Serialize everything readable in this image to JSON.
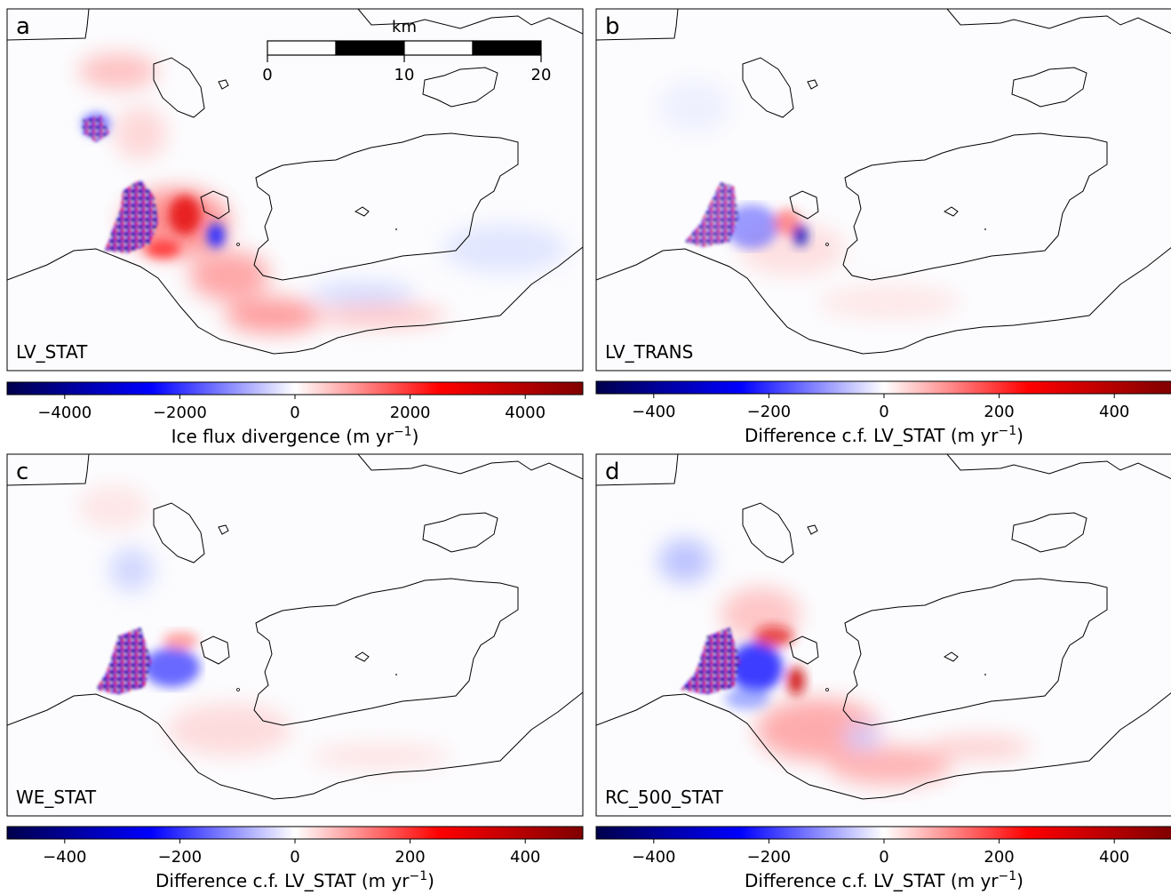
{
  "chart_data": [
    {
      "type": "heatmap",
      "panel_letter": "a",
      "label": "LV_STAT",
      "colorbar": {
        "label": "Ice flux divergence (m yr",
        "label_sup": "−1",
        "label_close": ")",
        "range": [
          -5000,
          5000
        ],
        "ticks": [
          -4000,
          -2000,
          0,
          2000,
          4000
        ],
        "tick_labels": [
          "−4000",
          "−2000",
          "0",
          "2000",
          "4000"
        ]
      },
      "scale_bar": {
        "unit": "km",
        "ticks": [
          "0",
          "10",
          "20"
        ]
      }
    },
    {
      "type": "heatmap",
      "panel_letter": "b",
      "label": "LV_TRANS",
      "colorbar": {
        "label": "Difference c.f. LV_STAT (m yr",
        "label_sup": "−1",
        "label_close": ")",
        "range": [
          -500,
          500
        ],
        "ticks": [
          -400,
          -200,
          0,
          200,
          400
        ],
        "tick_labels": [
          "−400",
          "−200",
          "0",
          "200",
          "400"
        ]
      }
    },
    {
      "type": "heatmap",
      "panel_letter": "c",
      "label": "WE_STAT",
      "colorbar": {
        "label": "Difference c.f. LV_STAT (m yr",
        "label_sup": "−1",
        "label_close": ")",
        "range": [
          -500,
          500
        ],
        "ticks": [
          -400,
          -200,
          0,
          200,
          400
        ],
        "tick_labels": [
          "−400",
          "−200",
          "0",
          "200",
          "400"
        ]
      }
    },
    {
      "type": "heatmap",
      "panel_letter": "d",
      "label": "RC_500_STAT",
      "colorbar": {
        "label": "Difference c.f. LV_STAT (m yr",
        "label_sup": "−1",
        "label_close": ")",
        "range": [
          -500,
          500
        ],
        "ticks": [
          -400,
          -200,
          0,
          200,
          400
        ],
        "tick_labels": [
          "−400",
          "−200",
          "0",
          "200",
          "400"
        ]
      }
    }
  ],
  "colormap": [
    "#00004c",
    "#0000ff",
    "#ffffff",
    "#ff0000",
    "#800000"
  ]
}
